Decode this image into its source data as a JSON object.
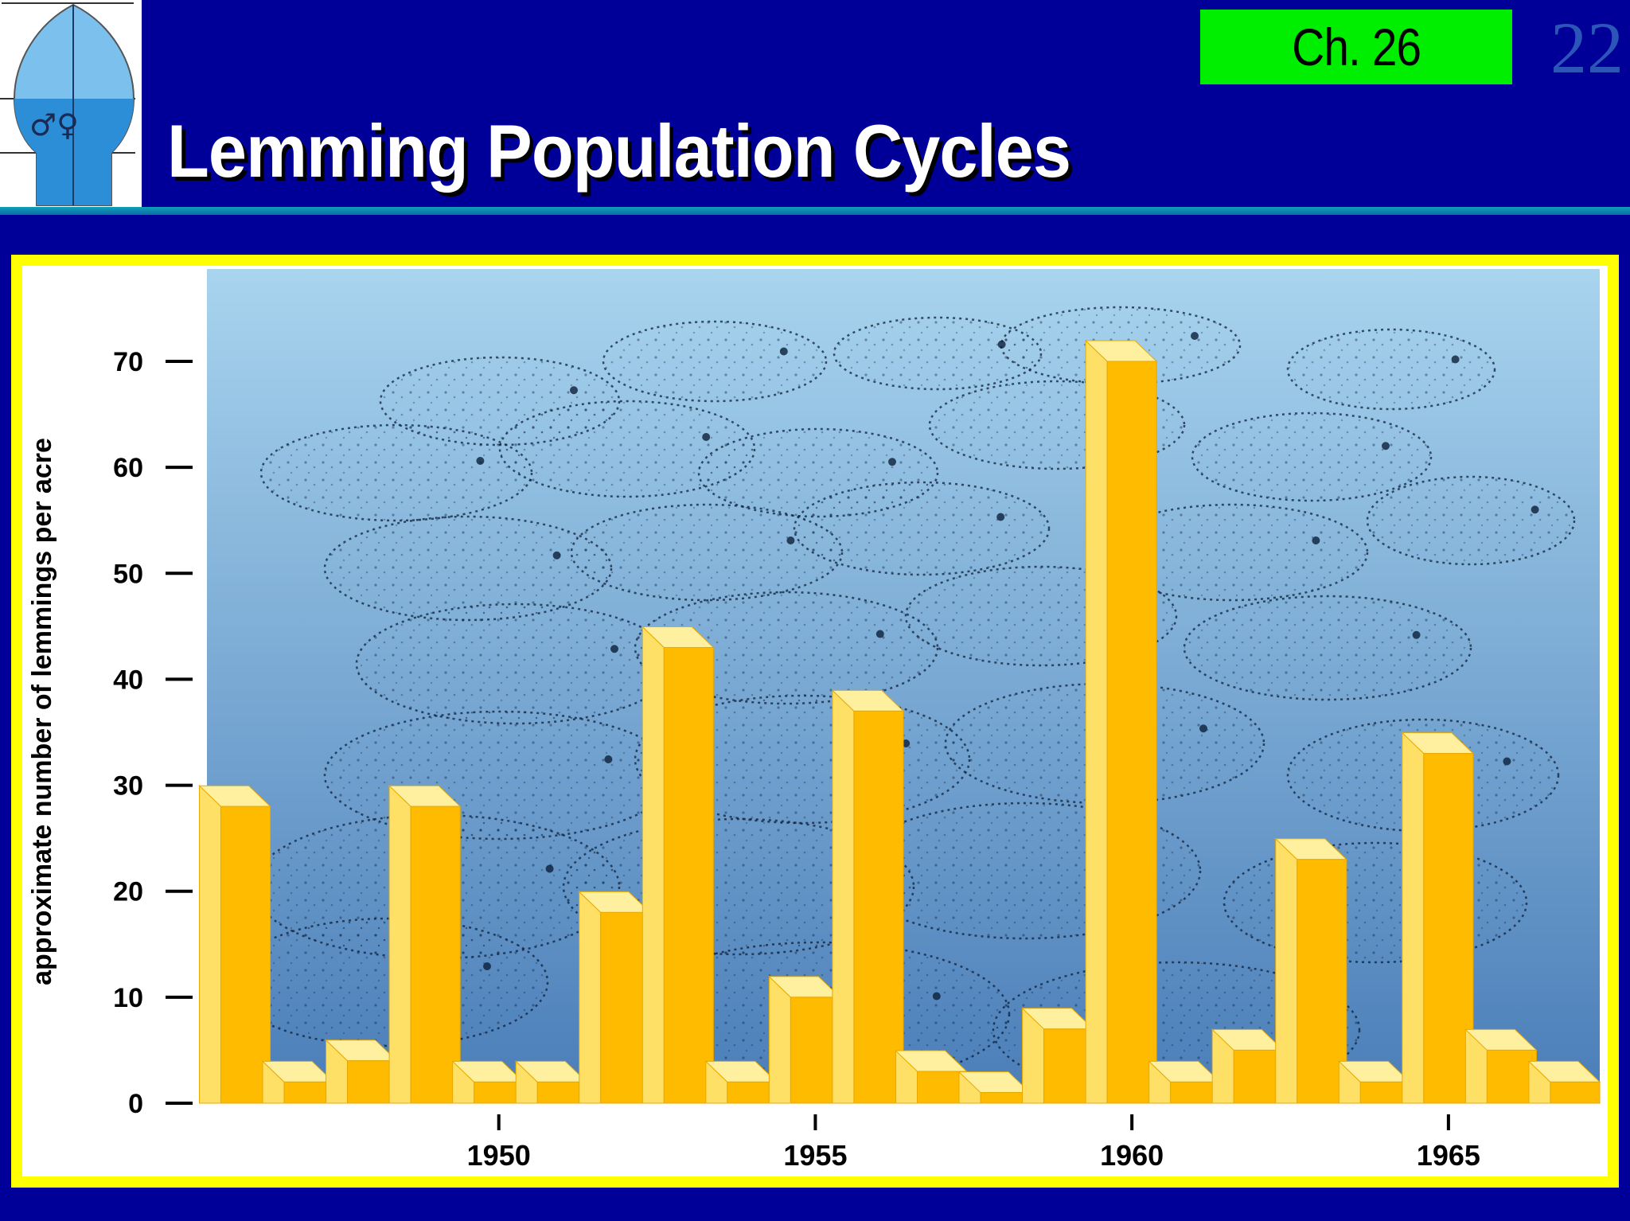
{
  "slide": {
    "chapter_label": "Ch. 26",
    "slide_number": "22",
    "title": "Lemming Population Cycles"
  },
  "logo": {
    "icon": "male-female-symbols-icon",
    "symbols": "♂♀"
  },
  "colors": {
    "background": "#000099",
    "chapter_badge": "#00ee00",
    "frame": "#ffff00",
    "bar_front": "#ffbb00",
    "bar_side": "#ffe066",
    "plot_top": "#a8d4ee",
    "plot_bottom": "#4a7db8"
  },
  "chart_data": {
    "type": "bar",
    "title": "",
    "xlabel": "",
    "ylabel": "approximate number of lemmings per acre",
    "ylim": [
      0,
      75
    ],
    "yticks": [
      0,
      10,
      20,
      30,
      40,
      50,
      60,
      70
    ],
    "xticks": [
      1950,
      1955,
      1960,
      1965
    ],
    "categories": [
      1946,
      1947,
      1948,
      1949,
      1950,
      1951,
      1952,
      1953,
      1954,
      1955,
      1956,
      1957,
      1958,
      1959,
      1960,
      1961,
      1962,
      1963,
      1964,
      1965,
      1966,
      1967
    ],
    "values": [
      28,
      2,
      4,
      28,
      2,
      2,
      18,
      43,
      2,
      10,
      37,
      3,
      1,
      7,
      70,
      2,
      5,
      23,
      2,
      33,
      5,
      2
    ],
    "grid": false,
    "legend": "none"
  }
}
